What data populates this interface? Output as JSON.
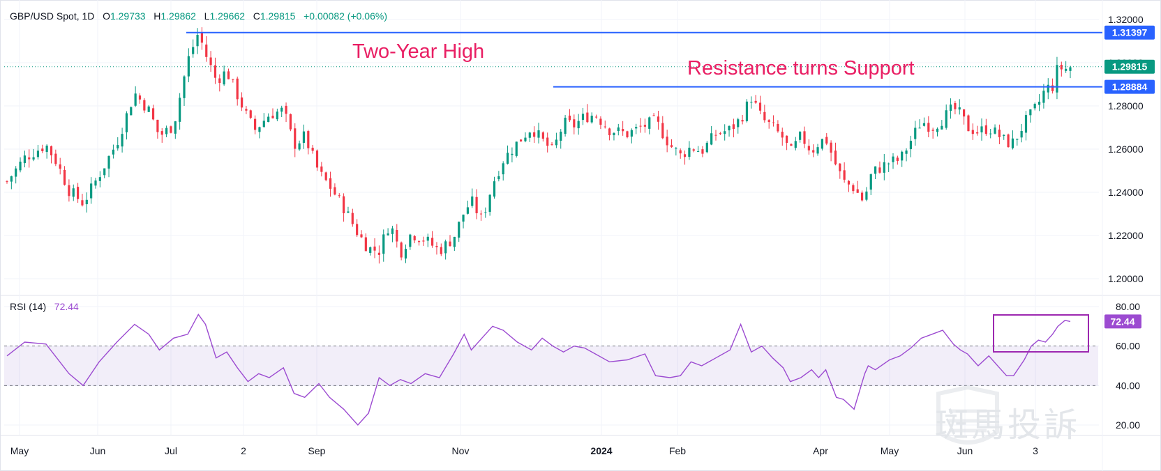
{
  "header": {
    "symbol": "GBP/USD Spot, 1D",
    "o_label": "O",
    "o_value": "1.29733",
    "h_label": "H",
    "h_value": "1.29862",
    "l_label": "L",
    "l_value": "1.29662",
    "c_label": "C",
    "c_value": "1.29815",
    "change": "+0.00082 (+0.06%)"
  },
  "annotations": {
    "two_year_high": "Two-Year High",
    "resistance": "Resistance turns Support"
  },
  "watermark": "斑馬投訴",
  "colors": {
    "up": "#089981",
    "down": "#f23645",
    "line": "#2962ff",
    "rsi": "#9c4bd1",
    "annotation": "#e91e63"
  },
  "chart_data": [
    {
      "type": "candlestick",
      "title": "GBP/USD Spot, 1D",
      "ylim": [
        1.195,
        1.325
      ],
      "yticks": [
        "1.32000",
        "1.30000",
        "1.28000",
        "1.26000",
        "1.24000",
        "1.22000",
        "1.20000"
      ],
      "x_labels": [
        "May",
        "Jun",
        "Jul",
        "2",
        "Sep",
        "Nov",
        "2024",
        "Feb",
        "Apr",
        "May",
        "Jun",
        "3"
      ],
      "horizontal_lines": [
        {
          "value": 1.31397,
          "label": "1.31397"
        },
        {
          "value": 1.28884,
          "label": "1.28884"
        }
      ],
      "last_price": {
        "value": 1.29815,
        "label": "1.29815"
      },
      "path": [
        [
          0,
          1.245
        ],
        [
          10,
          1.256
        ],
        [
          22,
          1.262
        ],
        [
          28,
          1.254
        ],
        [
          35,
          1.241
        ],
        [
          43,
          1.235
        ],
        [
          52,
          1.248
        ],
        [
          62,
          1.263
        ],
        [
          72,
          1.286
        ],
        [
          80,
          1.278
        ],
        [
          86,
          1.266
        ],
        [
          94,
          1.271
        ],
        [
          102,
          1.301
        ],
        [
          108,
          1.314
        ],
        [
          112,
          1.304
        ],
        [
          118,
          1.292
        ],
        [
          124,
          1.296
        ],
        [
          130,
          1.285
        ],
        [
          136,
          1.274
        ],
        [
          140,
          1.269
        ],
        [
          148,
          1.276
        ],
        [
          156,
          1.278
        ],
        [
          162,
          1.262
        ],
        [
          168,
          1.266
        ],
        [
          176,
          1.249
        ],
        [
          182,
          1.243
        ],
        [
          190,
          1.233
        ],
        [
          198,
          1.221
        ],
        [
          204,
          1.214
        ],
        [
          210,
          1.213
        ],
        [
          216,
          1.226
        ],
        [
          222,
          1.212
        ],
        [
          228,
          1.221
        ],
        [
          236,
          1.218
        ],
        [
          244,
          1.213
        ],
        [
          252,
          1.219
        ],
        [
          258,
          1.231
        ],
        [
          262,
          1.236
        ],
        [
          268,
          1.227
        ],
        [
          274,
          1.244
        ],
        [
          280,
          1.255
        ],
        [
          288,
          1.263
        ],
        [
          296,
          1.27
        ],
        [
          302,
          1.264
        ],
        [
          308,
          1.259
        ],
        [
          314,
          1.272
        ],
        [
          320,
          1.271
        ],
        [
          326,
          1.275
        ],
        [
          332,
          1.276
        ],
        [
          340,
          1.269
        ],
        [
          350,
          1.267
        ],
        [
          360,
          1.271
        ],
        [
          366,
          1.273
        ],
        [
          374,
          1.262
        ],
        [
          380,
          1.257
        ],
        [
          386,
          1.261
        ],
        [
          392,
          1.259
        ],
        [
          400,
          1.267
        ],
        [
          408,
          1.269
        ],
        [
          414,
          1.274
        ],
        [
          420,
          1.284
        ],
        [
          426,
          1.274
        ],
        [
          432,
          1.27
        ],
        [
          438,
          1.265
        ],
        [
          442,
          1.258
        ],
        [
          448,
          1.266
        ],
        [
          454,
          1.259
        ],
        [
          458,
          1.263
        ],
        [
          462,
          1.265
        ],
        [
          468,
          1.252
        ],
        [
          472,
          1.245
        ],
        [
          478,
          1.242
        ],
        [
          484,
          1.235
        ],
        [
          486,
          1.246
        ],
        [
          490,
          1.25
        ],
        [
          498,
          1.254
        ],
        [
          504,
          1.255
        ],
        [
          510,
          1.264
        ],
        [
          516,
          1.273
        ],
        [
          522,
          1.27
        ],
        [
          528,
          1.274
        ],
        [
          534,
          1.279
        ],
        [
          538,
          1.276
        ],
        [
          542,
          1.27
        ],
        [
          548,
          1.268
        ],
        [
          554,
          1.27
        ],
        [
          560,
          1.266
        ],
        [
          564,
          1.263
        ],
        [
          568,
          1.263
        ],
        [
          574,
          1.272
        ],
        [
          578,
          1.276
        ],
        [
          582,
          1.281
        ],
        [
          586,
          1.288
        ],
        [
          590,
          1.289
        ],
        [
          593,
          1.298
        ],
        [
          597,
          1.297
        ],
        [
          600,
          1.298
        ]
      ]
    },
    {
      "type": "line",
      "title": "RSI (14)",
      "value_label": "72.44",
      "ylim": [
        15,
        85
      ],
      "yticks": [
        "80.00",
        "60.00",
        "40.00",
        "20.00"
      ],
      "band": [
        40,
        60
      ],
      "x": [
        0,
        10,
        22,
        35,
        43,
        52,
        62,
        72,
        80,
        86,
        94,
        102,
        108,
        112,
        118,
        124,
        130,
        136,
        142,
        148,
        156,
        162,
        168,
        176,
        182,
        190,
        198,
        204,
        210,
        216,
        222,
        228,
        236,
        244,
        252,
        258,
        262,
        268,
        274,
        280,
        288,
        296,
        302,
        308,
        314,
        320,
        326,
        332,
        340,
        350,
        360,
        366,
        374,
        380,
        386,
        392,
        400,
        408,
        414,
        420,
        426,
        432,
        438,
        442,
        448,
        454,
        458,
        462,
        468,
        472,
        478,
        484,
        486,
        490,
        498,
        504,
        510,
        516,
        522,
        528,
        534,
        538,
        542,
        548,
        554,
        560,
        564,
        568,
        574,
        578,
        582,
        586,
        590,
        593,
        597,
        600
      ],
      "values": [
        55,
        62,
        61,
        46,
        40,
        52,
        62,
        71,
        66,
        58,
        64,
        66,
        76,
        71,
        54,
        57,
        49,
        42,
        46,
        44,
        49,
        36,
        34,
        41,
        34,
        28,
        20,
        26,
        44,
        40,
        43,
        41,
        46,
        44,
        56,
        66,
        58,
        64,
        70,
        68,
        62,
        58,
        64,
        60,
        57,
        60,
        59,
        56,
        52,
        53,
        56,
        45,
        44,
        45,
        52,
        50,
        54,
        58,
        71,
        57,
        60,
        54,
        49,
        42,
        44,
        48,
        44,
        48,
        34,
        33,
        28,
        46,
        50,
        48,
        53,
        55,
        59,
        64,
        66,
        68,
        61,
        58,
        56,
        50,
        55,
        49,
        45,
        45,
        53,
        60,
        63,
        62,
        66,
        70,
        73,
        72.44
      ]
    }
  ]
}
